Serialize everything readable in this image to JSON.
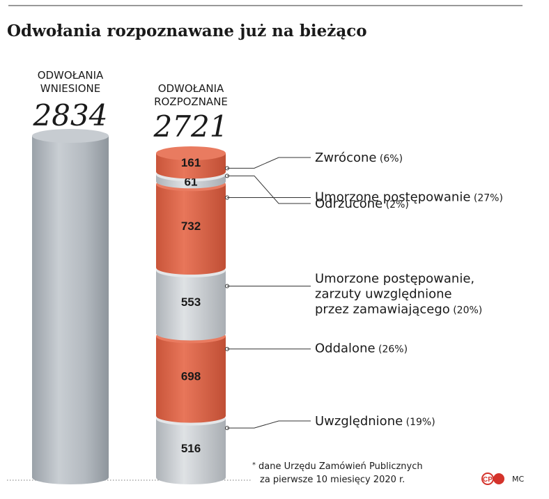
{
  "title": "Odwołania rozpoznawane już na bieżąco",
  "filed": {
    "label_line1": "ODWOŁANIA",
    "label_line2": "WNIESIONE",
    "total": "2834"
  },
  "recognized": {
    "label_line1": "ODWOŁANIA",
    "label_line2": "ROZPOZNANE",
    "total": "2721"
  },
  "colors": {
    "orange": "#e06a4a",
    "grey": "#c8ccd0",
    "filed_bar": "#b9bfc5",
    "text": "#1a1a1a"
  },
  "chart_data": {
    "type": "bar",
    "title": "Odwołania rozpoznawane już na bieżąco",
    "bars": [
      {
        "name": "ODWOŁANIA WNIESIONE",
        "value": 2834
      },
      {
        "name": "ODWOŁANIA ROZPOZNANE",
        "value": 2721
      }
    ],
    "segments": [
      {
        "label": "Zwrócone",
        "pct": "(6%)",
        "value": 161,
        "color": "orange",
        "label_lines": [
          "Zwrócone"
        ]
      },
      {
        "label": "Odrzucone",
        "pct": "(2%)",
        "value": 61,
        "color": "grey",
        "label_lines": [
          "Odrzucone"
        ]
      },
      {
        "label": "Umorzone postępowanie",
        "pct": "(27%)",
        "value": 732,
        "color": "orange",
        "label_lines": [
          "Umorzone postępowanie"
        ]
      },
      {
        "label": "Umorzone postępowanie, zarzuty uwzględnione przez zamawiającego",
        "pct": "(20%)",
        "value": 553,
        "color": "grey",
        "label_lines": [
          "Umorzone postępowanie,",
          "zarzuty uwzględnione",
          "przez zamawiającego"
        ]
      },
      {
        "label": "Oddalone",
        "pct": "(26%)",
        "value": 698,
        "color": "orange",
        "label_lines": [
          "Oddalone"
        ]
      },
      {
        "label": "Uwzględnione",
        "pct": "(19%)",
        "value": 516,
        "color": "grey",
        "label_lines": [
          "Uwzględnione"
        ]
      }
    ]
  },
  "footnote": {
    "line1": "dane Urzędu Zamówień Publicznych",
    "line2": "za pierwsze 10 miesięcy 2020 r.",
    "marker": "*"
  },
  "logo": {
    "mark": "CP",
    "credit": "MC"
  }
}
